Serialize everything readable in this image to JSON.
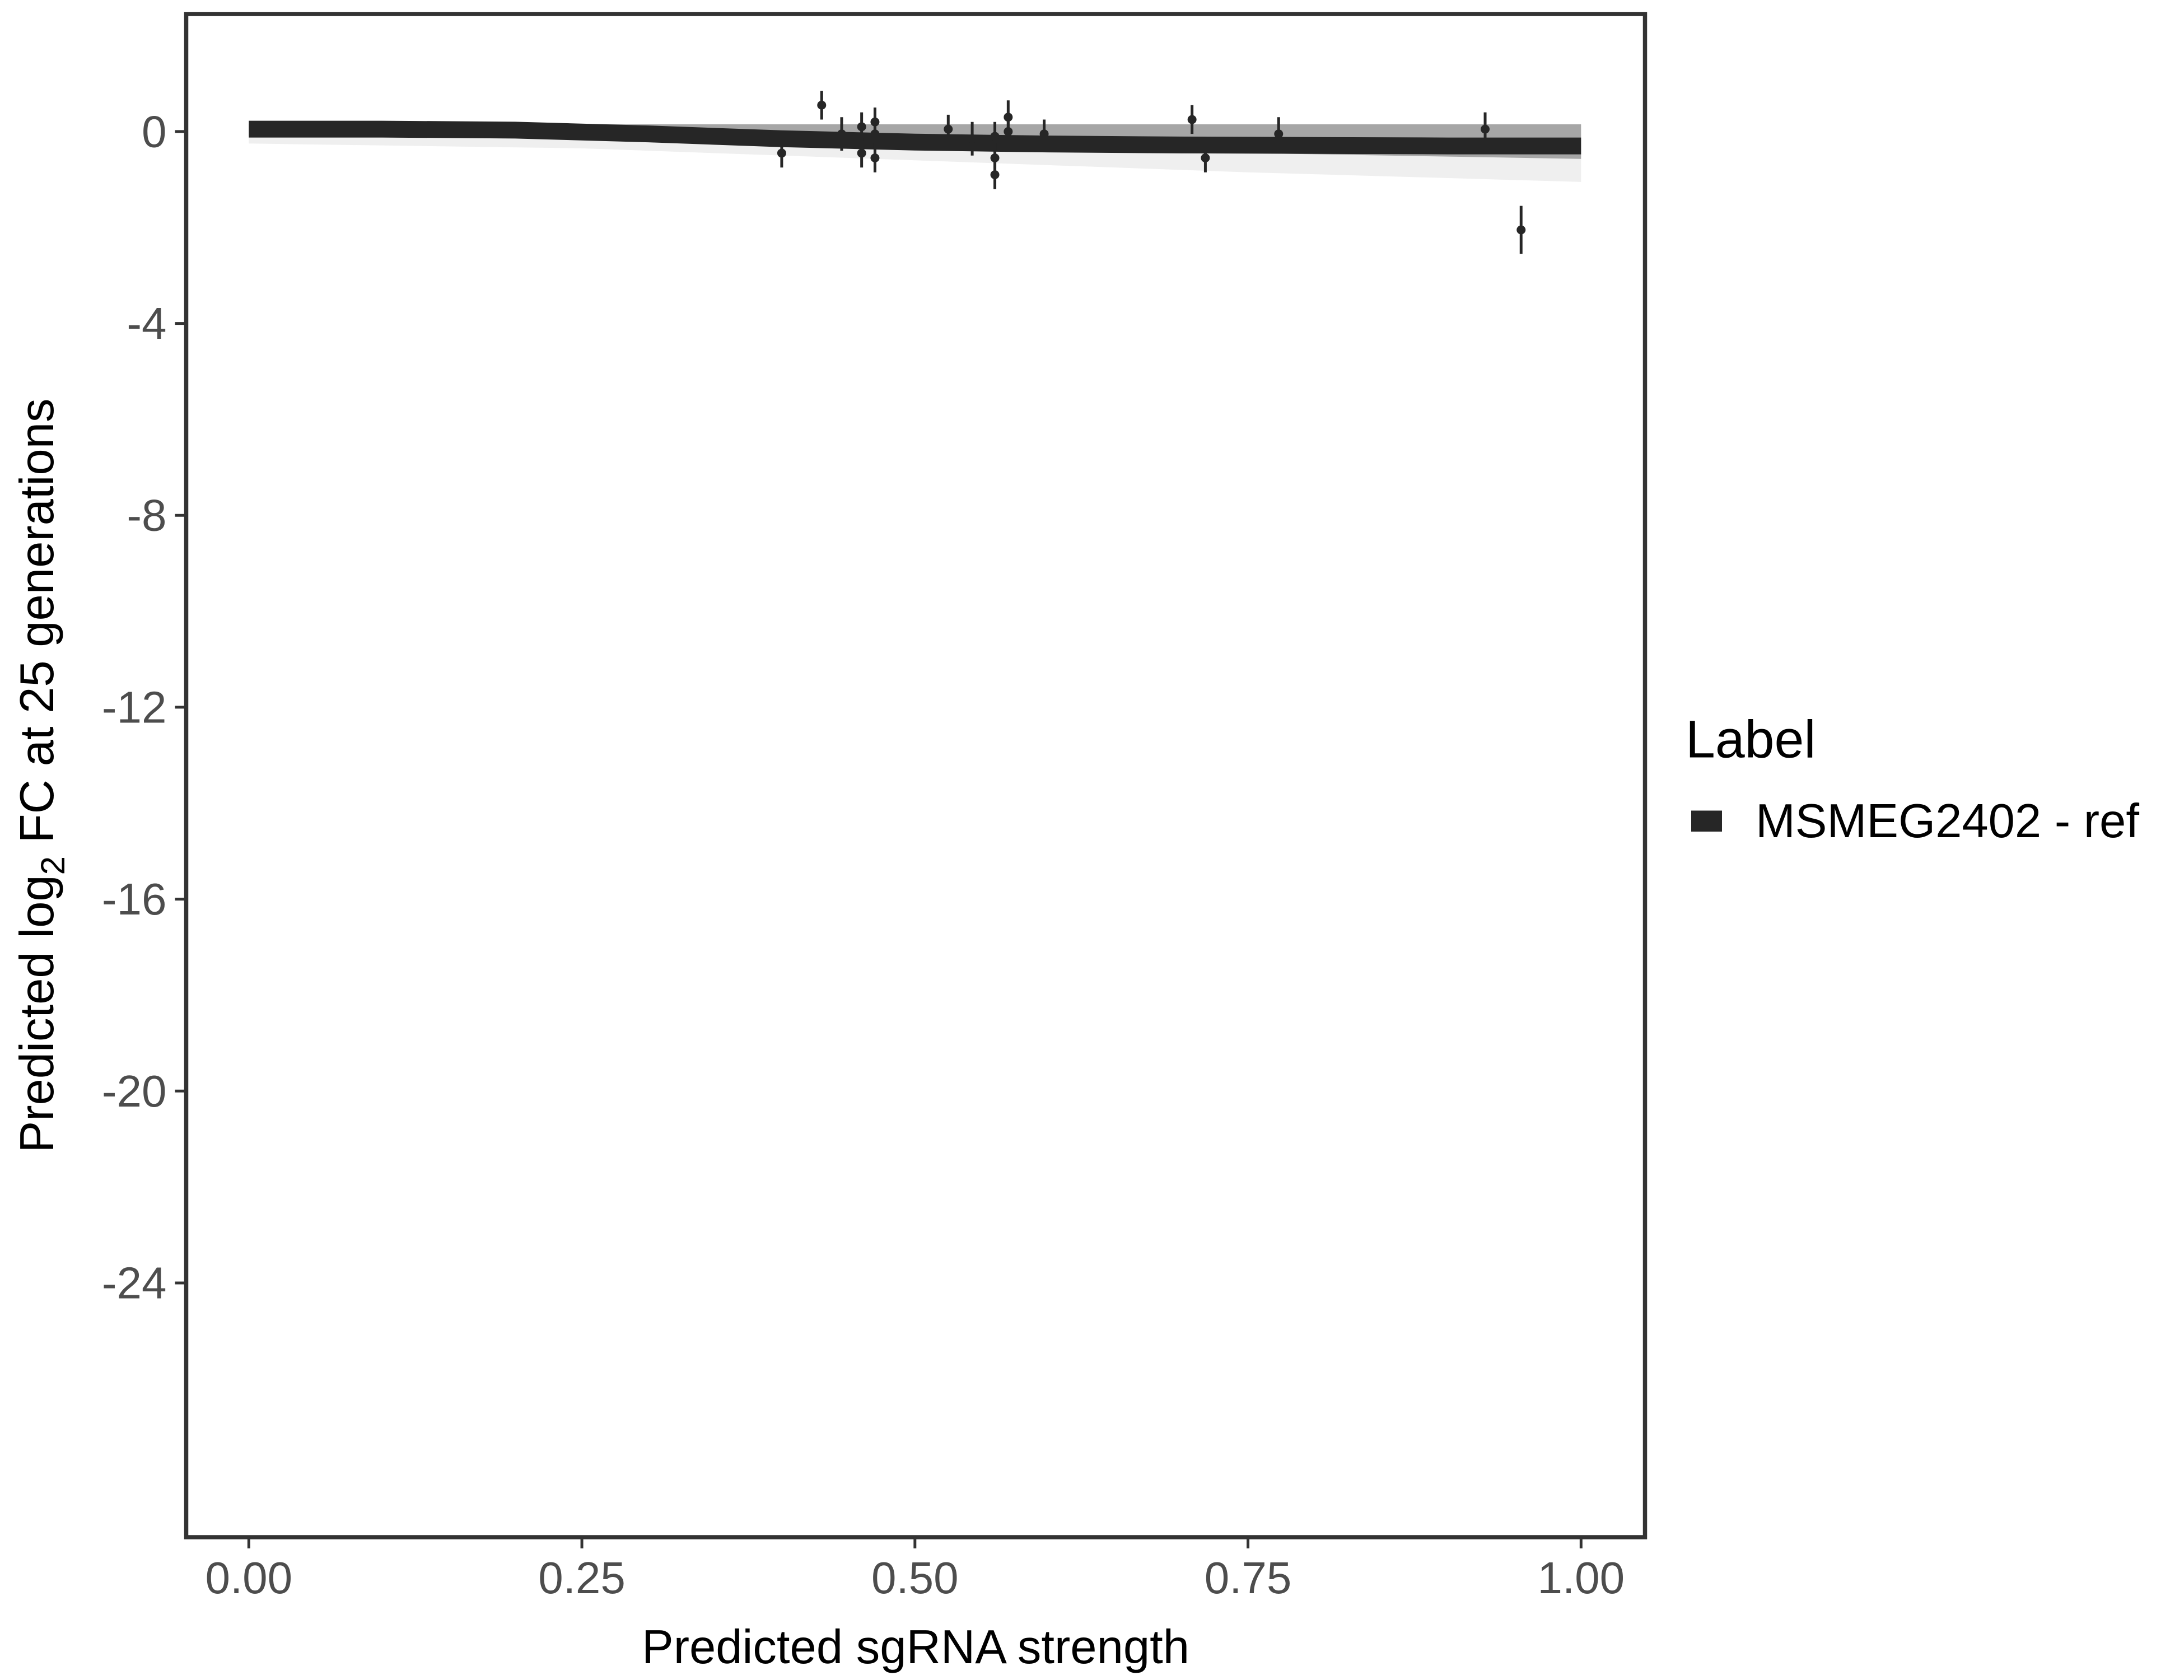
{
  "chart_data": {
    "type": "scatter",
    "xlabel": "Predicted sgRNA strength",
    "ylabel_parts": [
      "Predicted  log",
      "2",
      " FC at 25 generations"
    ],
    "xlim": [
      -0.047,
      1.048
    ],
    "ylim": [
      -29.3,
      2.45
    ],
    "xticks": [
      0,
      0.25,
      0.5,
      0.75,
      1
    ],
    "xtick_labels": [
      "0.00",
      "0.25",
      "0.50",
      "0.75",
      "1.00"
    ],
    "yticks": [
      0,
      -4,
      -8,
      -12,
      -16,
      -20,
      -24
    ],
    "ytick_labels": [
      "0",
      "-4",
      "-8",
      "-12",
      "-16",
      "-20",
      "-24"
    ],
    "grid": false,
    "legend": {
      "title": "Label",
      "placement": "right",
      "entries": [
        {
          "label": "MSMEG2402 - ref",
          "color": "#262626"
        }
      ]
    },
    "fit_line": {
      "x": [
        0,
        0.1,
        0.2,
        0.3,
        0.4,
        0.5,
        0.6,
        0.7,
        0.8,
        0.9,
        1.0
      ],
      "y": [
        0.05,
        0.05,
        0.03,
        -0.05,
        -0.15,
        -0.22,
        -0.26,
        -0.28,
        -0.29,
        -0.3,
        -0.3
      ],
      "color": "#262626"
    },
    "ribbon": {
      "x": [
        0,
        0.25,
        0.5,
        0.75,
        1.0
      ],
      "upper": [
        0.15,
        0.15,
        0.15,
        0.15,
        0.15
      ],
      "lower": [
        -0.25,
        -0.35,
        -0.6,
        -0.85,
        -1.05
      ],
      "color": "#a6a6a6"
    },
    "points": [
      {
        "x": 0.4,
        "y": -0.45,
        "err": 0.3
      },
      {
        "x": 0.43,
        "y": 0.55,
        "err": 0.3
      },
      {
        "x": 0.445,
        "y": -0.05,
        "err": 0.35
      },
      {
        "x": 0.46,
        "y": 0.1,
        "err": 0.3
      },
      {
        "x": 0.46,
        "y": -0.45,
        "err": 0.3
      },
      {
        "x": 0.47,
        "y": 0.2,
        "err": 0.3
      },
      {
        "x": 0.47,
        "y": -0.55,
        "err": 0.3
      },
      {
        "x": 0.47,
        "y": -0.05,
        "err": 0.3
      },
      {
        "x": 0.525,
        "y": 0.05,
        "err": 0.3
      },
      {
        "x": 0.543,
        "y": -0.15,
        "err": 0.35
      },
      {
        "x": 0.56,
        "y": -0.1,
        "err": 0.3
      },
      {
        "x": 0.56,
        "y": -0.55,
        "err": 0.3
      },
      {
        "x": 0.56,
        "y": -0.9,
        "err": 0.3
      },
      {
        "x": 0.57,
        "y": 0.3,
        "err": 0.35
      },
      {
        "x": 0.57,
        "y": 0.0,
        "err": 0.3
      },
      {
        "x": 0.597,
        "y": -0.05,
        "err": 0.3
      },
      {
        "x": 0.708,
        "y": 0.25,
        "err": 0.3
      },
      {
        "x": 0.718,
        "y": -0.55,
        "err": 0.3
      },
      {
        "x": 0.773,
        "y": -0.05,
        "err": 0.35
      },
      {
        "x": 0.928,
        "y": 0.05,
        "err": 0.35
      },
      {
        "x": 0.955,
        "y": -2.05,
        "err": 0.5
      }
    ]
  }
}
